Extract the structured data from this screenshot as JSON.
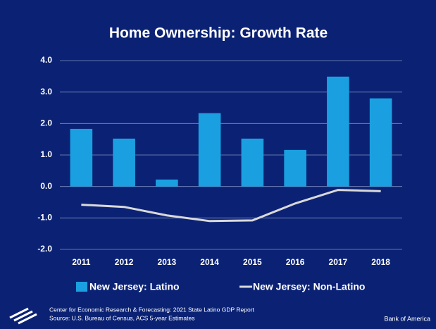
{
  "chart_data": {
    "type": "bar",
    "title": "Home Ownership: Growth Rate",
    "categories": [
      "2011",
      "2012",
      "2013",
      "2014",
      "2015",
      "2016",
      "2017",
      "2018"
    ],
    "series": [
      {
        "name": "New Jersey: Latino",
        "type": "bar",
        "color": "#1aa0e0",
        "values": [
          1.83,
          1.52,
          0.22,
          2.33,
          1.52,
          1.16,
          3.49,
          2.8
        ]
      },
      {
        "name": "New Jersey: Non-Latino",
        "type": "line",
        "color": "#d9d9d9",
        "values": [
          -0.58,
          -0.65,
          -0.92,
          -1.1,
          -1.08,
          -0.54,
          -0.11,
          -0.15
        ]
      }
    ],
    "ylim": [
      -2,
      4
    ],
    "yticks": [
      {
        "value": -2,
        "label": "-2.0"
      },
      {
        "value": -1,
        "label": "-1.0"
      },
      {
        "value": 0,
        "label": "0.0"
      },
      {
        "value": 1,
        "label": "1.0"
      },
      {
        "value": 2,
        "label": "2.0"
      },
      {
        "value": 3,
        "label": "3.0"
      },
      {
        "value": 4,
        "label": "4.0"
      }
    ],
    "grid": true,
    "legend": "bottom",
    "background": "#0b2274"
  },
  "footer": {
    "source_line1": "Center for Economic Research & Forecasting: 2021 State Latino GDP Report",
    "source_line2": "Source: U.S. Bureau of Census, ACS 5-year Estimates",
    "brand": "Bank of America"
  }
}
